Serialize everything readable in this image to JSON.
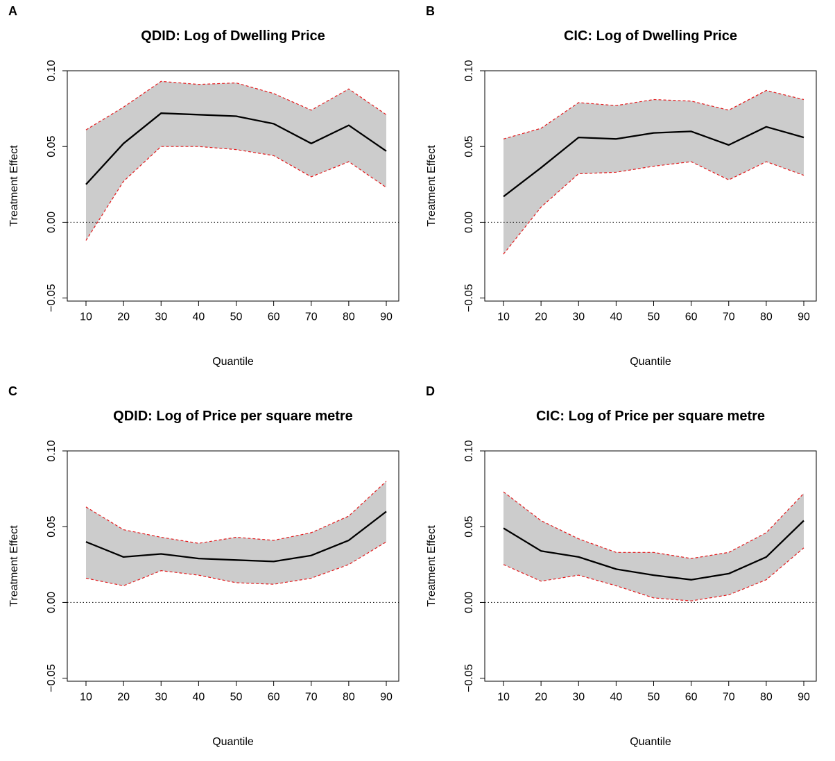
{
  "figure": {
    "panels": [
      "A",
      "B",
      "C",
      "D"
    ]
  },
  "chart_data": [
    {
      "panel_label": "A",
      "type": "line",
      "title": "QDID: Log of Dwelling Price",
      "xlabel": "Quantile",
      "ylabel": "Treatment Effect",
      "x": [
        10,
        20,
        30,
        40,
        50,
        60,
        70,
        80,
        90
      ],
      "xticks": [
        "10",
        "20",
        "30",
        "40",
        "50",
        "60",
        "70",
        "80",
        "90"
      ],
      "yticks": [
        "-0.05",
        "0.00",
        "0.05",
        "0.10"
      ],
      "ylim": [
        -0.052,
        0.1
      ],
      "reference_line": 0.0,
      "series": [
        {
          "role": "estimate",
          "values": [
            0.025,
            0.052,
            0.072,
            0.071,
            0.07,
            0.065,
            0.052,
            0.064,
            0.047
          ]
        },
        {
          "role": "upper_band",
          "values": [
            0.061,
            0.076,
            0.093,
            0.091,
            0.092,
            0.085,
            0.074,
            0.088,
            0.071
          ]
        },
        {
          "role": "lower_band",
          "values": [
            -0.012,
            0.027,
            0.05,
            0.05,
            0.048,
            0.044,
            0.03,
            0.04,
            0.023
          ]
        }
      ],
      "colors": {
        "band_fill": "#cccccc",
        "band_edge": "#e41a1c",
        "estimate": "#000000"
      }
    },
    {
      "panel_label": "B",
      "type": "line",
      "title": "CIC: Log of Dwelling Price",
      "xlabel": "Quantile",
      "ylabel": "Treatment Effect",
      "x": [
        10,
        20,
        30,
        40,
        50,
        60,
        70,
        80,
        90
      ],
      "xticks": [
        "10",
        "20",
        "30",
        "40",
        "50",
        "60",
        "70",
        "80",
        "90"
      ],
      "yticks": [
        "-0.05",
        "0.00",
        "0.05",
        "0.10"
      ],
      "ylim": [
        -0.052,
        0.1
      ],
      "reference_line": 0.0,
      "series": [
        {
          "role": "estimate",
          "values": [
            0.017,
            0.036,
            0.056,
            0.055,
            0.059,
            0.06,
            0.051,
            0.063,
            0.056
          ]
        },
        {
          "role": "upper_band",
          "values": [
            0.055,
            0.062,
            0.079,
            0.077,
            0.081,
            0.08,
            0.074,
            0.087,
            0.081
          ]
        },
        {
          "role": "lower_band",
          "values": [
            -0.021,
            0.01,
            0.032,
            0.033,
            0.037,
            0.04,
            0.028,
            0.04,
            0.031
          ]
        }
      ],
      "colors": {
        "band_fill": "#cccccc",
        "band_edge": "#e41a1c",
        "estimate": "#000000"
      }
    },
    {
      "panel_label": "C",
      "type": "line",
      "title": "QDID: Log of Price per square metre",
      "xlabel": "Quantile",
      "ylabel": "Treatment Effect",
      "x": [
        10,
        20,
        30,
        40,
        50,
        60,
        70,
        80,
        90
      ],
      "xticks": [
        "10",
        "20",
        "30",
        "40",
        "50",
        "60",
        "70",
        "80",
        "90"
      ],
      "yticks": [
        "-0.05",
        "0.00",
        "0.05",
        "0.10"
      ],
      "ylim": [
        -0.052,
        0.1
      ],
      "reference_line": 0.0,
      "series": [
        {
          "role": "estimate",
          "values": [
            0.04,
            0.03,
            0.032,
            0.029,
            0.028,
            0.027,
            0.031,
            0.041,
            0.06
          ]
        },
        {
          "role": "upper_band",
          "values": [
            0.063,
            0.048,
            0.043,
            0.039,
            0.043,
            0.041,
            0.046,
            0.057,
            0.08
          ]
        },
        {
          "role": "lower_band",
          "values": [
            0.016,
            0.011,
            0.021,
            0.018,
            0.013,
            0.012,
            0.016,
            0.025,
            0.04
          ]
        }
      ],
      "colors": {
        "band_fill": "#cccccc",
        "band_edge": "#e41a1c",
        "estimate": "#000000"
      }
    },
    {
      "panel_label": "D",
      "type": "line",
      "title": "CIC: Log of Price per square metre",
      "xlabel": "Quantile",
      "ylabel": "Treatment Effect",
      "x": [
        10,
        20,
        30,
        40,
        50,
        60,
        70,
        80,
        90
      ],
      "xticks": [
        "10",
        "20",
        "30",
        "40",
        "50",
        "60",
        "70",
        "80",
        "90"
      ],
      "yticks": [
        "-0.05",
        "0.00",
        "0.05",
        "0.10"
      ],
      "ylim": [
        -0.052,
        0.1
      ],
      "reference_line": 0.0,
      "series": [
        {
          "role": "estimate",
          "values": [
            0.049,
            0.034,
            0.03,
            0.022,
            0.018,
            0.015,
            0.019,
            0.03,
            0.054
          ]
        },
        {
          "role": "upper_band",
          "values": [
            0.073,
            0.054,
            0.042,
            0.033,
            0.033,
            0.029,
            0.033,
            0.046,
            0.072
          ]
        },
        {
          "role": "lower_band",
          "values": [
            0.025,
            0.014,
            0.018,
            0.011,
            0.003,
            0.001,
            0.005,
            0.015,
            0.036
          ]
        }
      ],
      "colors": {
        "band_fill": "#cccccc",
        "band_edge": "#e41a1c",
        "estimate": "#000000"
      }
    }
  ]
}
